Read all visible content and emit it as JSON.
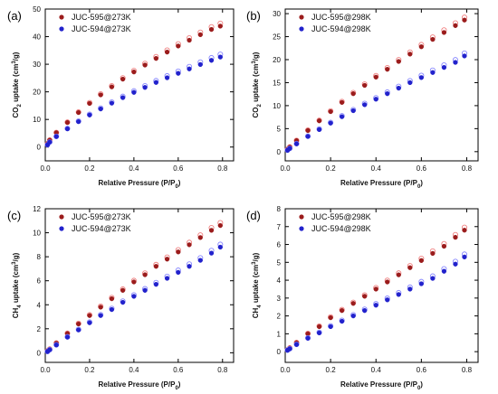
{
  "chart_data": [
    {
      "panel": "(a)",
      "type": "scatter",
      "xlabel": "Relative Pressure (P/P",
      "xlabel_sub": "0",
      "ylabel": "CO",
      "ylabel_sub": "2",
      "ylabel_tail": " uptake (cm",
      "ylabel_sup": "3",
      "ylabel_end": "/g)",
      "xlim": [
        0,
        0.85
      ],
      "ylim": [
        -5,
        50
      ],
      "xticks": [
        "0.0",
        "0.2",
        "0.4",
        "0.6",
        "0.8"
      ],
      "yticks": [
        "0",
        "10",
        "20",
        "30",
        "40",
        "50"
      ],
      "legend_position": "top-left",
      "series": [
        {
          "name": "JUC-595@273K",
          "color": "#9b1c1c",
          "open_color": "#f08080",
          "x": [
            0.01,
            0.02,
            0.05,
            0.1,
            0.15,
            0.2,
            0.25,
            0.3,
            0.35,
            0.4,
            0.45,
            0.5,
            0.55,
            0.6,
            0.65,
            0.7,
            0.75,
            0.79
          ],
          "y": [
            1.2,
            2.5,
            5.2,
            8.9,
            12.5,
            15.8,
            18.9,
            21.8,
            24.6,
            27.2,
            29.7,
            32.1,
            34.4,
            36.6,
            38.7,
            40.7,
            42.6,
            43.8
          ]
        },
        {
          "name": "JUC-594@273K",
          "color": "#2222cc",
          "open_color": "#8888ff",
          "x": [
            0.01,
            0.02,
            0.05,
            0.1,
            0.15,
            0.2,
            0.25,
            0.3,
            0.35,
            0.4,
            0.45,
            0.5,
            0.55,
            0.6,
            0.65,
            0.7,
            0.75,
            0.79
          ],
          "y": [
            0.8,
            1.8,
            3.8,
            6.6,
            9.2,
            11.6,
            13.8,
            15.9,
            17.9,
            19.8,
            21.6,
            23.4,
            25.1,
            26.7,
            28.3,
            29.9,
            31.4,
            32.6
          ]
        }
      ]
    },
    {
      "panel": "(b)",
      "type": "scatter",
      "xlabel": "Relative Pressure (P/P",
      "xlabel_sub": "0",
      "ylabel": "CO",
      "ylabel_sub": "2",
      "ylabel_tail": " uptake (cm",
      "ylabel_sup": "3",
      "ylabel_end": "/g)",
      "xlim": [
        0,
        0.85
      ],
      "ylim": [
        -2,
        31
      ],
      "xticks": [
        "0.0",
        "0.2",
        "0.4",
        "0.6",
        "0.8"
      ],
      "yticks": [
        "0",
        "5",
        "10",
        "15",
        "20",
        "25",
        "30"
      ],
      "legend_position": "top-left",
      "series": [
        {
          "name": "JUC-595@298K",
          "color": "#9b1c1c",
          "open_color": "#f08080",
          "x": [
            0.01,
            0.02,
            0.05,
            0.1,
            0.15,
            0.2,
            0.25,
            0.3,
            0.35,
            0.4,
            0.45,
            0.5,
            0.55,
            0.6,
            0.65,
            0.7,
            0.75,
            0.79
          ],
          "y": [
            0.5,
            1.0,
            2.4,
            4.6,
            6.7,
            8.7,
            10.7,
            12.6,
            14.4,
            16.2,
            17.9,
            19.6,
            21.2,
            22.8,
            24.4,
            25.9,
            27.4,
            28.6
          ]
        },
        {
          "name": "JUC-594@298K",
          "color": "#2222cc",
          "open_color": "#8888ff",
          "x": [
            0.01,
            0.02,
            0.05,
            0.1,
            0.15,
            0.2,
            0.25,
            0.3,
            0.35,
            0.4,
            0.45,
            0.5,
            0.55,
            0.6,
            0.65,
            0.7,
            0.75,
            0.79
          ],
          "y": [
            0.3,
            0.7,
            1.7,
            3.3,
            4.8,
            6.2,
            7.6,
            8.9,
            10.2,
            11.4,
            12.6,
            13.8,
            15.0,
            16.1,
            17.2,
            18.3,
            19.4,
            20.8
          ]
        }
      ]
    },
    {
      "panel": "(c)",
      "type": "scatter",
      "xlabel": "Relative Pressure (P/P",
      "xlabel_sub": "0",
      "ylabel": "CH",
      "ylabel_sub": "4",
      "ylabel_tail": " uptake (cm",
      "ylabel_sup": "3",
      "ylabel_end": "/g)",
      "xlim": [
        0,
        0.85
      ],
      "ylim": [
        -0.8,
        12
      ],
      "xticks": [
        "0.0",
        "0.2",
        "0.4",
        "0.6",
        "0.8"
      ],
      "yticks": [
        "0",
        "2",
        "4",
        "6",
        "8",
        "10",
        "12"
      ],
      "legend_position": "top-left",
      "series": [
        {
          "name": "JUC-595@273K",
          "color": "#9b1c1c",
          "open_color": "#f08080",
          "x": [
            0.01,
            0.02,
            0.05,
            0.1,
            0.15,
            0.2,
            0.25,
            0.3,
            0.35,
            0.4,
            0.45,
            0.5,
            0.55,
            0.6,
            0.65,
            0.7,
            0.75,
            0.79
          ],
          "y": [
            0.15,
            0.3,
            0.8,
            1.6,
            2.4,
            3.1,
            3.8,
            4.5,
            5.2,
            5.9,
            6.5,
            7.2,
            7.8,
            8.4,
            9.0,
            9.6,
            10.2,
            10.6
          ]
        },
        {
          "name": "JUC-594@273K",
          "color": "#2222cc",
          "open_color": "#8888ff",
          "x": [
            0.01,
            0.02,
            0.05,
            0.1,
            0.15,
            0.2,
            0.25,
            0.3,
            0.35,
            0.4,
            0.45,
            0.5,
            0.55,
            0.6,
            0.65,
            0.7,
            0.75,
            0.79
          ],
          "y": [
            0.1,
            0.25,
            0.65,
            1.3,
            1.9,
            2.5,
            3.1,
            3.6,
            4.2,
            4.7,
            5.2,
            5.7,
            6.2,
            6.7,
            7.2,
            7.7,
            8.3,
            8.8
          ]
        }
      ]
    },
    {
      "panel": "(d)",
      "type": "scatter",
      "xlabel": "Relative Pressure (P/P",
      "xlabel_sub": "0",
      "ylabel": "CH",
      "ylabel_sub": "4",
      "ylabel_tail": " uptake (cm",
      "ylabel_sup": "3",
      "ylabel_end": "/g)",
      "xlim": [
        0,
        0.85
      ],
      "ylim": [
        -0.6,
        8
      ],
      "xticks": [
        "0.0",
        "0.2",
        "0.4",
        "0.6",
        "0.8"
      ],
      "yticks": [
        "0",
        "1",
        "2",
        "3",
        "4",
        "5",
        "6",
        "7",
        "8"
      ],
      "legend_position": "top-left",
      "series": [
        {
          "name": "JUC-595@298K",
          "color": "#9b1c1c",
          "open_color": "#f08080",
          "x": [
            0.01,
            0.02,
            0.05,
            0.1,
            0.15,
            0.2,
            0.25,
            0.3,
            0.35,
            0.4,
            0.45,
            0.5,
            0.55,
            0.6,
            0.65,
            0.7,
            0.75,
            0.79
          ],
          "y": [
            0.1,
            0.2,
            0.5,
            1.0,
            1.4,
            1.9,
            2.3,
            2.7,
            3.1,
            3.5,
            3.9,
            4.3,
            4.7,
            5.1,
            5.5,
            5.9,
            6.4,
            6.8
          ]
        },
        {
          "name": "JUC-594@298K",
          "color": "#2222cc",
          "open_color": "#8888ff",
          "x": [
            0.01,
            0.02,
            0.05,
            0.1,
            0.15,
            0.2,
            0.25,
            0.3,
            0.35,
            0.4,
            0.45,
            0.5,
            0.55,
            0.6,
            0.65,
            0.7,
            0.75,
            0.79
          ],
          "y": [
            0.08,
            0.16,
            0.4,
            0.75,
            1.05,
            1.4,
            1.7,
            2.0,
            2.3,
            2.6,
            2.9,
            3.2,
            3.5,
            3.8,
            4.1,
            4.5,
            4.9,
            5.3
          ]
        }
      ]
    }
  ]
}
